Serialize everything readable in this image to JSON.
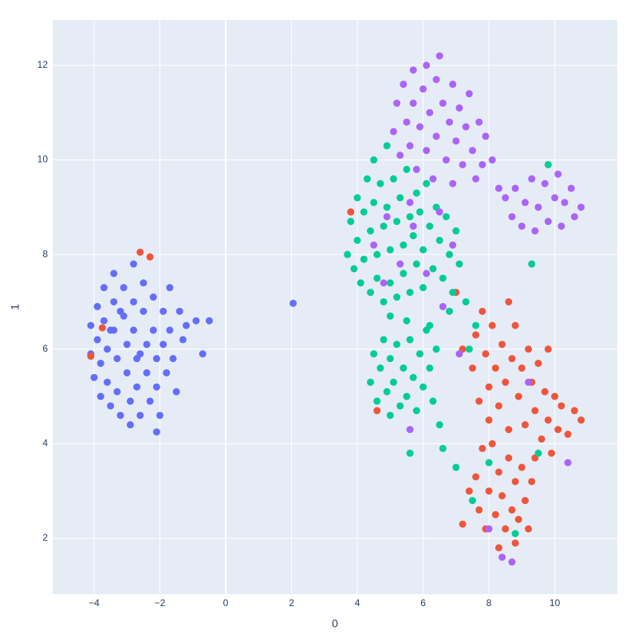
{
  "chart_data": {
    "type": "scatter",
    "xlabel": "0",
    "ylabel": "1",
    "xlim": [
      -5.26,
      11.9
    ],
    "ylim": [
      0.82,
      12.96
    ],
    "xticks": [
      {
        "value": -4,
        "label": "−4"
      },
      {
        "value": -2,
        "label": "−2"
      },
      0,
      2,
      4,
      6,
      8,
      10
    ],
    "yticks": [
      2,
      4,
      6,
      8,
      10,
      12
    ],
    "grid": true,
    "series": [
      {
        "color": "#636efa",
        "x": [
          -4.1,
          -4.1,
          -4.0,
          -3.9,
          -3.9,
          -3.8,
          -3.8,
          -3.7,
          -3.7,
          -3.6,
          -3.6,
          -3.5,
          -3.4,
          -3.4,
          -3.4,
          -3.3,
          -3.3,
          -3.2,
          -3.1,
          -3.1,
          -3.0,
          -3.0,
          -2.9,
          -2.9,
          -2.8,
          -2.8,
          -2.8,
          -2.7,
          -2.7,
          -2.6,
          -2.5,
          -2.5,
          -2.4,
          -2.4,
          -2.3,
          -2.2,
          -2.2,
          -2.1,
          -2.1,
          -2.0,
          -1.9,
          -1.9,
          -1.8,
          -1.7,
          -1.7,
          -1.6,
          -1.5,
          -1.4,
          -1.3,
          -1.2,
          -0.9,
          -0.7,
          -0.5,
          -2.1,
          2.05,
          -3.2,
          -2.6,
          -3.5
        ],
        "values": [
          6.5,
          5.9,
          5.4,
          6.9,
          6.2,
          5.7,
          5.0,
          7.3,
          6.6,
          6.0,
          5.3,
          4.8,
          7.6,
          7.0,
          6.4,
          5.8,
          5.1,
          4.6,
          7.3,
          6.7,
          6.1,
          5.5,
          4.9,
          4.4,
          7.8,
          7.0,
          6.4,
          5.8,
          5.2,
          4.6,
          7.4,
          6.8,
          6.1,
          5.5,
          4.9,
          7.1,
          6.4,
          5.8,
          5.2,
          4.6,
          6.8,
          6.1,
          5.5,
          7.3,
          6.4,
          5.8,
          5.1,
          6.8,
          6.2,
          6.5,
          6.6,
          5.9,
          6.6,
          4.25,
          6.97,
          6.8,
          5.9,
          6.4
        ]
      },
      {
        "color": "#ef553b",
        "x": [
          7.5,
          7.6,
          7.7,
          7.8,
          7.9,
          8.0,
          8.0,
          8.1,
          8.2,
          8.3,
          8.4,
          8.5,
          8.6,
          8.6,
          8.7,
          8.8,
          8.9,
          9.0,
          9.1,
          9.2,
          9.3,
          9.4,
          9.5,
          9.6,
          9.7,
          9.8,
          9.9,
          10.0,
          10.1,
          10.2,
          10.4,
          10.6,
          10.8,
          9.8,
          7.6,
          7.7,
          7.8,
          7.9,
          8.0,
          8.1,
          8.2,
          8.3,
          8.3,
          8.4,
          8.5,
          8.6,
          8.7,
          8.8,
          8.8,
          8.9,
          9.0,
          9.1,
          9.2,
          9.3,
          9.4,
          7.2,
          7.4,
          -2.6,
          -2.3,
          -3.75,
          -4.1,
          3.8,
          4.6,
          7.2,
          7.0
        ],
        "values": [
          5.6,
          6.3,
          4.9,
          6.8,
          5.9,
          5.2,
          4.5,
          6.5,
          5.6,
          4.8,
          6.1,
          5.3,
          7.0,
          4.3,
          5.8,
          6.5,
          5.0,
          5.6,
          4.4,
          6.0,
          5.3,
          4.7,
          5.7,
          4.1,
          5.1,
          4.5,
          3.8,
          5.0,
          4.3,
          4.8,
          4.2,
          4.7,
          4.5,
          6.0,
          3.3,
          2.6,
          3.9,
          2.2,
          3.0,
          4.0,
          2.5,
          1.8,
          3.4,
          2.9,
          2.2,
          3.7,
          2.6,
          1.9,
          3.2,
          2.4,
          3.5,
          2.8,
          2.2,
          3.2,
          3.7,
          2.3,
          3.0,
          8.05,
          7.95,
          6.45,
          5.85,
          8.9,
          4.7,
          6.0,
          7.2
        ]
      },
      {
        "color": "#00cc96",
        "x": [
          3.7,
          3.8,
          3.9,
          4.0,
          4.0,
          4.1,
          4.2,
          4.2,
          4.3,
          4.4,
          4.4,
          4.5,
          4.5,
          4.6,
          4.6,
          4.7,
          4.8,
          4.8,
          4.9,
          4.9,
          5.0,
          5.0,
          5.1,
          5.2,
          5.2,
          5.3,
          5.4,
          5.4,
          5.5,
          5.6,
          5.6,
          5.7,
          5.8,
          5.8,
          5.9,
          6.0,
          6.0,
          6.1,
          6.2,
          6.3,
          6.4,
          6.5,
          6.6,
          6.7,
          6.8,
          6.9,
          7.0,
          7.1,
          5.0,
          5.5,
          6.2,
          6.8,
          7.3,
          7.6,
          4.4,
          4.5,
          4.6,
          4.7,
          4.8,
          4.9,
          5.0,
          5.0,
          5.1,
          5.2,
          5.3,
          5.4,
          5.5,
          5.6,
          5.7,
          5.8,
          5.9,
          6.0,
          6.1,
          6.2,
          6.3,
          6.4,
          6.5,
          6.6,
          5.6,
          7.0,
          7.5,
          8.0,
          9.5,
          9.8,
          9.3,
          8.8,
          7.4
        ],
        "values": [
          8.0,
          8.7,
          7.7,
          9.2,
          8.3,
          7.4,
          8.9,
          7.9,
          9.6,
          8.5,
          7.2,
          10.0,
          9.1,
          8.0,
          7.5,
          9.5,
          8.6,
          7.0,
          10.3,
          9.0,
          8.1,
          7.4,
          9.6,
          8.7,
          7.1,
          9.2,
          8.2,
          7.6,
          9.8,
          8.8,
          7.2,
          8.4,
          9.3,
          7.8,
          8.9,
          8.1,
          7.3,
          9.5,
          8.6,
          7.7,
          9.0,
          8.3,
          7.5,
          8.8,
          8.0,
          7.2,
          8.5,
          7.8,
          6.7,
          6.6,
          6.5,
          6.8,
          7.0,
          6.5,
          5.3,
          5.9,
          4.9,
          5.6,
          6.2,
          5.1,
          4.6,
          5.8,
          5.3,
          6.1,
          4.8,
          5.6,
          5.0,
          6.2,
          5.4,
          4.7,
          5.9,
          5.2,
          6.4,
          5.6,
          4.9,
          6.0,
          4.4,
          3.9,
          3.8,
          3.5,
          2.8,
          3.6,
          3.8,
          9.9,
          7.8,
          2.1,
          6.0
        ]
      },
      {
        "color": "#ab63fa",
        "x": [
          5.1,
          5.2,
          5.3,
          5.4,
          5.5,
          5.6,
          5.7,
          5.7,
          5.8,
          5.9,
          6.0,
          6.1,
          6.1,
          6.2,
          6.3,
          6.4,
          6.4,
          6.5,
          6.6,
          6.7,
          6.8,
          6.9,
          6.9,
          7.0,
          7.1,
          7.2,
          7.3,
          7.4,
          7.5,
          7.6,
          7.7,
          7.8,
          7.9,
          8.1,
          8.3,
          8.5,
          8.7,
          8.8,
          9.0,
          9.1,
          9.3,
          9.4,
          9.5,
          9.7,
          9.8,
          10.0,
          10.1,
          10.2,
          10.3,
          10.5,
          10.6,
          10.8,
          4.5,
          4.9,
          5.3,
          5.7,
          6.1,
          6.5,
          6.9,
          5.6,
          4.8,
          6.6,
          7.1,
          5.6,
          8.4,
          8.7,
          8.0,
          9.2,
          10.4
        ],
        "values": [
          10.6,
          11.2,
          10.1,
          11.6,
          10.8,
          10.3,
          11.9,
          11.2,
          9.8,
          10.7,
          11.5,
          10.2,
          12.0,
          11.0,
          9.6,
          10.5,
          11.7,
          12.2,
          11.2,
          10.0,
          10.8,
          11.6,
          9.5,
          10.4,
          11.1,
          9.9,
          10.7,
          11.4,
          10.2,
          9.6,
          10.8,
          9.9,
          10.5,
          10.0,
          9.4,
          9.2,
          8.8,
          9.4,
          8.6,
          9.1,
          9.6,
          8.5,
          9.0,
          9.5,
          8.7,
          9.2,
          9.7,
          8.6,
          9.1,
          9.4,
          8.8,
          9.0,
          8.2,
          8.8,
          7.8,
          8.6,
          7.6,
          8.9,
          8.2,
          9.1,
          7.4,
          6.9,
          5.9,
          4.3,
          1.6,
          1.5,
          2.2,
          5.3,
          3.6
        ]
      }
    ]
  }
}
